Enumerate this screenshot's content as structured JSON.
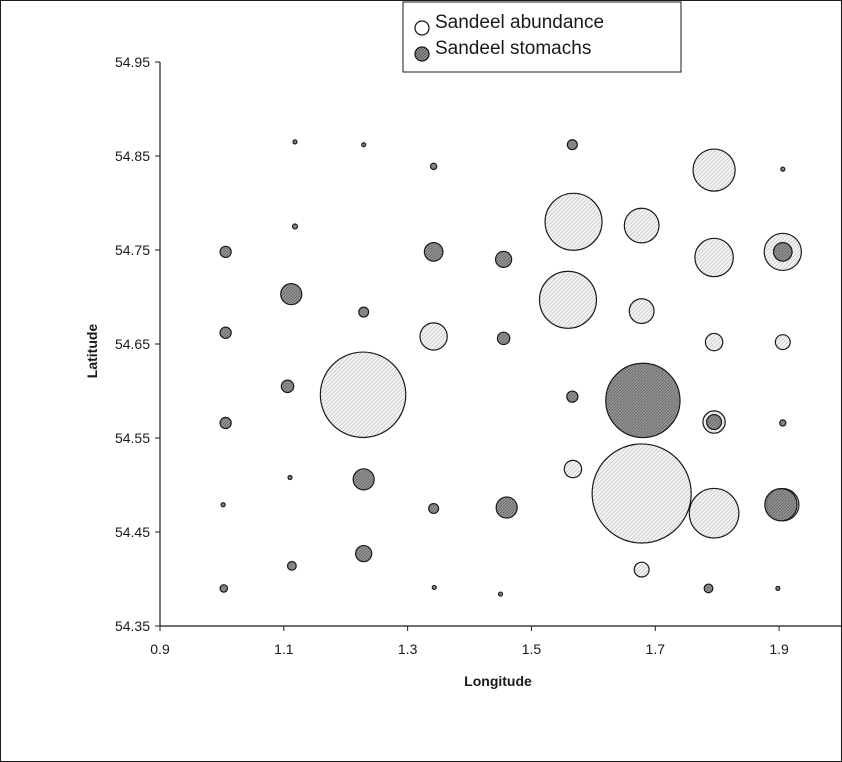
{
  "chart_data": {
    "type": "scatter",
    "subtype": "bubble",
    "title": "",
    "xlabel": "Longitude",
    "ylabel": "Latitude",
    "xlim": [
      0.9,
      2.0
    ],
    "ylim": [
      54.35,
      54.95
    ],
    "xticks": [
      "0.9",
      "1.1",
      "1.3",
      "1.5",
      "1.7",
      "1.9"
    ],
    "yticks": [
      "54.35",
      "54.45",
      "54.55",
      "54.65",
      "54.75",
      "54.85",
      "54.95"
    ],
    "grid": false,
    "legend": {
      "position": "top-center",
      "entries": [
        "Sandeel abundance",
        "Sandeel stomachs"
      ]
    },
    "colors": {
      "abundance_fill": "#f2f2f2",
      "stomachs_fill": "#8c8c8c",
      "stroke": "#1a1a1a"
    },
    "series": [
      {
        "name": "Sandeel abundance",
        "points": [
          {
            "x": 1.568,
            "y": 54.78,
            "size": 0.046
          },
          {
            "x": 1.678,
            "y": 54.776,
            "size": 0.028
          },
          {
            "x": 1.795,
            "y": 54.835,
            "size": 0.034
          },
          {
            "x": 1.795,
            "y": 54.742,
            "size": 0.031
          },
          {
            "x": 1.906,
            "y": 54.748,
            "size": 0.03
          },
          {
            "x": 1.559,
            "y": 54.697,
            "size": 0.046
          },
          {
            "x": 1.678,
            "y": 54.685,
            "size": 0.02
          },
          {
            "x": 1.342,
            "y": 54.658,
            "size": 0.022
          },
          {
            "x": 1.228,
            "y": 54.596,
            "size": 0.069
          },
          {
            "x": 1.795,
            "y": 54.652,
            "size": 0.014
          },
          {
            "x": 1.906,
            "y": 54.652,
            "size": 0.012
          },
          {
            "x": 1.678,
            "y": 54.491,
            "size": 0.08
          },
          {
            "x": 1.795,
            "y": 54.567,
            "size": 0.018
          },
          {
            "x": 1.795,
            "y": 54.47,
            "size": 0.04
          },
          {
            "x": 1.906,
            "y": 54.479,
            "size": 0.026
          },
          {
            "x": 1.678,
            "y": 54.41,
            "size": 0.012
          },
          {
            "x": 1.567,
            "y": 54.517,
            "size": 0.014
          }
        ]
      },
      {
        "name": "Sandeel stomachs",
        "points": [
          {
            "x": 1.118,
            "y": 54.865,
            "size": 0.003
          },
          {
            "x": 1.229,
            "y": 54.862,
            "size": 0.003
          },
          {
            "x": 1.342,
            "y": 54.839,
            "size": 0.005
          },
          {
            "x": 1.566,
            "y": 54.862,
            "size": 0.008
          },
          {
            "x": 1.906,
            "y": 54.836,
            "size": 0.003
          },
          {
            "x": 1.118,
            "y": 54.775,
            "size": 0.004
          },
          {
            "x": 1.006,
            "y": 54.748,
            "size": 0.009
          },
          {
            "x": 1.342,
            "y": 54.748,
            "size": 0.015
          },
          {
            "x": 1.455,
            "y": 54.74,
            "size": 0.013
          },
          {
            "x": 1.112,
            "y": 54.703,
            "size": 0.017
          },
          {
            "x": 1.229,
            "y": 54.684,
            "size": 0.008
          },
          {
            "x": 1.006,
            "y": 54.662,
            "size": 0.009
          },
          {
            "x": 1.455,
            "y": 54.656,
            "size": 0.01
          },
          {
            "x": 1.106,
            "y": 54.605,
            "size": 0.01
          },
          {
            "x": 1.566,
            "y": 54.594,
            "size": 0.009
          },
          {
            "x": 1.68,
            "y": 54.59,
            "size": 0.06
          },
          {
            "x": 1.006,
            "y": 54.566,
            "size": 0.009
          },
          {
            "x": 1.906,
            "y": 54.566,
            "size": 0.005
          },
          {
            "x": 1.11,
            "y": 54.508,
            "size": 0.003
          },
          {
            "x": 1.229,
            "y": 54.506,
            "size": 0.017
          },
          {
            "x": 1.002,
            "y": 54.479,
            "size": 0.003
          },
          {
            "x": 1.342,
            "y": 54.475,
            "size": 0.008
          },
          {
            "x": 1.46,
            "y": 54.476,
            "size": 0.017
          },
          {
            "x": 1.229,
            "y": 54.427,
            "size": 0.013
          },
          {
            "x": 1.113,
            "y": 54.414,
            "size": 0.007
          },
          {
            "x": 1.003,
            "y": 54.39,
            "size": 0.006
          },
          {
            "x": 1.343,
            "y": 54.391,
            "size": 0.003
          },
          {
            "x": 1.45,
            "y": 54.384,
            "size": 0.003
          },
          {
            "x": 1.786,
            "y": 54.39,
            "size": 0.007
          },
          {
            "x": 1.898,
            "y": 54.39,
            "size": 0.003
          },
          {
            "x": 1.903,
            "y": 54.479,
            "size": 0.026
          },
          {
            "x": 1.906,
            "y": 54.748,
            "size": 0.015
          },
          {
            "x": 1.795,
            "y": 54.567,
            "size": 0.012
          }
        ]
      }
    ]
  }
}
